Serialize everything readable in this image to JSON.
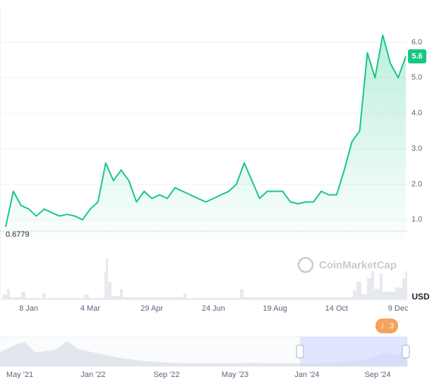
{
  "chart_data": {
    "type": "line",
    "categories": [
      null,
      null,
      null,
      "8 Jan",
      null,
      null,
      null,
      null,
      null,
      null,
      null,
      "4 Mar",
      null,
      null,
      null,
      null,
      null,
      null,
      null,
      "29 Apr",
      null,
      null,
      null,
      null,
      null,
      null,
      null,
      "24 Jun",
      null,
      null,
      null,
      null,
      null,
      null,
      null,
      "19 Aug",
      null,
      null,
      null,
      null,
      null,
      null,
      null,
      "14 Oct",
      null,
      null,
      null,
      null,
      null,
      null,
      null,
      "9 Dec",
      null
    ],
    "values": [
      0.8,
      1.8,
      1.4,
      1.3,
      1.1,
      1.3,
      1.2,
      1.1,
      1.15,
      1.1,
      1.0,
      1.3,
      1.5,
      2.6,
      2.1,
      2.4,
      2.1,
      1.5,
      1.8,
      1.6,
      1.7,
      1.6,
      1.9,
      1.8,
      1.7,
      1.6,
      1.5,
      1.6,
      1.7,
      1.8,
      2.0,
      2.6,
      2.1,
      1.6,
      1.8,
      1.8,
      1.8,
      1.5,
      1.45,
      1.5,
      1.5,
      1.8,
      1.7,
      1.7,
      2.4,
      3.2,
      3.5,
      5.7,
      5.0,
      6.2,
      5.4,
      5.0,
      5.6
    ],
    "color": "#16c784",
    "ylim": [
      0.44,
      6.99
    ],
    "yticks": [
      {
        "value": 1,
        "label": "1.0"
      },
      {
        "value": 2,
        "label": "2.0"
      },
      {
        "value": 3,
        "label": "3.0"
      },
      {
        "value": 4,
        "label": "4.0"
      },
      {
        "value": 5,
        "label": "5.0"
      },
      {
        "value": 6,
        "label": "6.0"
      }
    ],
    "grid": true,
    "reference_line": 0.6779,
    "currency": "USD",
    "watermark": "CoinMarketCap",
    "events_count": 3,
    "navigator_labels": [
      "May '21",
      "Jan '22",
      "Sep '22",
      "May '23",
      "Jan '24",
      "Sep '24"
    ]
  }
}
